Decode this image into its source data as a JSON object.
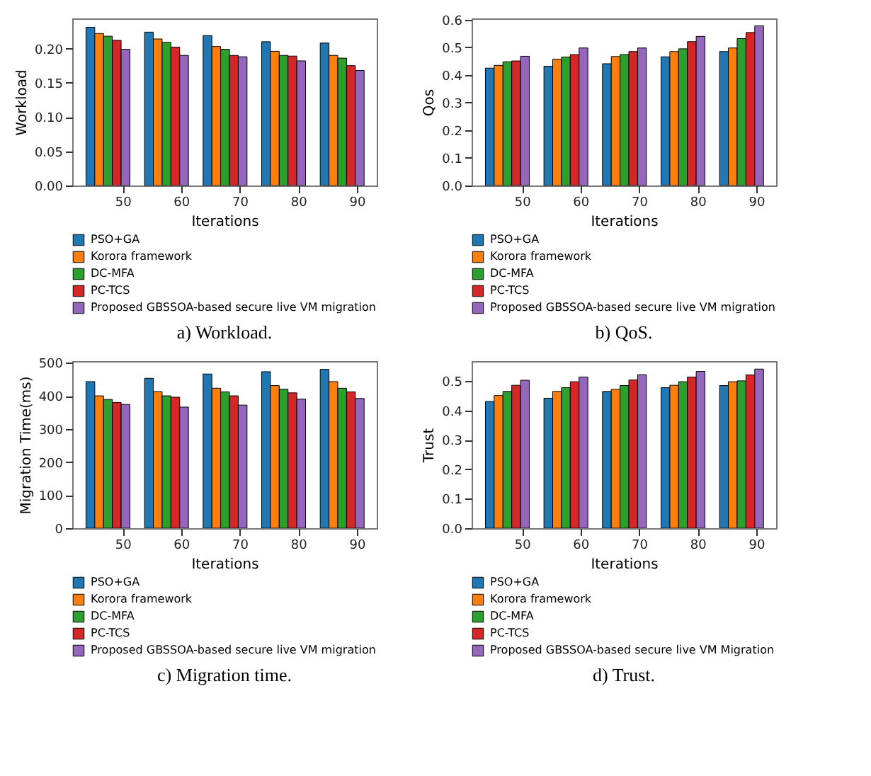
{
  "chart_data": [
    {
      "type": "bar",
      "annotations": [
        "a) Workload."
      ],
      "xlabel": "Iterations",
      "ylabel": "Workload",
      "xlim": [
        41.4,
        93.4
      ],
      "xticks": [
        50,
        60,
        70,
        80,
        90
      ],
      "ylim": [
        0,
        0.244
      ],
      "yticks": [
        {
          "value": 0,
          "label": "0.00"
        },
        {
          "value": 0.05,
          "label": "0.05"
        },
        {
          "value": 0.1,
          "label": "0.10"
        },
        {
          "value": 0.15,
          "label": "0.15"
        },
        {
          "value": 0.2,
          "label": "0.20"
        }
      ],
      "grid": false,
      "legend": "bottom",
      "series": [
        {
          "name": "PSO+GA",
          "color": "#1f77b4",
          "x": [
            44.5,
            54.5,
            64.5,
            74.5,
            84.5
          ],
          "values": [
            0.231,
            0.224,
            0.219,
            0.21,
            0.208
          ]
        },
        {
          "name": "Korora framework",
          "color": "#ff7f0e",
          "x": [
            46,
            56,
            66,
            76,
            86
          ],
          "values": [
            0.222,
            0.214,
            0.203,
            0.196,
            0.19
          ]
        },
        {
          "name": "DC-MFA",
          "color": "#2ca02c",
          "x": [
            47.5,
            57.5,
            67.5,
            77.5,
            87.5
          ],
          "values": [
            0.218,
            0.209,
            0.199,
            0.19,
            0.186
          ]
        },
        {
          "name": "PC-TCS",
          "color": "#d62728",
          "x": [
            49,
            59,
            69,
            79,
            89
          ],
          "values": [
            0.212,
            0.202,
            0.19,
            0.189,
            0.175
          ]
        },
        {
          "name": "Proposed GBSSOA-based secure live VM migration",
          "color": "#9467bd",
          "x": [
            50.5,
            60.5,
            70.5,
            80.5,
            90.5
          ],
          "values": [
            0.199,
            0.19,
            0.188,
            0.182,
            0.168
          ]
        }
      ]
    },
    {
      "type": "bar",
      "annotations": [
        "b) QoS."
      ],
      "xlabel": "Iterations",
      "ylabel": "Qos",
      "xlim": [
        41.4,
        93.4
      ],
      "xticks": [
        50,
        60,
        70,
        80,
        90
      ],
      "ylim": [
        0,
        0.605
      ],
      "yticks": [
        {
          "value": 0,
          "label": "0.0"
        },
        0.1,
        0.2,
        0.3,
        0.4,
        0.5,
        0.6
      ],
      "grid": false,
      "legend": "bottom",
      "series": [
        {
          "name": "PSO+GA",
          "color": "#1f77b4",
          "x": [
            44.5,
            54.5,
            64.5,
            74.5,
            84.5
          ],
          "values": [
            0.425,
            0.432,
            0.441,
            0.466,
            0.485
          ]
        },
        {
          "name": "Korora framework",
          "color": "#ff7f0e",
          "x": [
            46,
            56,
            66,
            76,
            86
          ],
          "values": [
            0.435,
            0.457,
            0.467,
            0.485,
            0.498
          ]
        },
        {
          "name": "DC-MFA",
          "color": "#2ca02c",
          "x": [
            47.5,
            57.5,
            67.5,
            77.5,
            87.5
          ],
          "values": [
            0.448,
            0.465,
            0.474,
            0.495,
            0.532
          ]
        },
        {
          "name": "PC-TCS",
          "color": "#d62728",
          "x": [
            49,
            59,
            69,
            79,
            89
          ],
          "values": [
            0.451,
            0.474,
            0.485,
            0.521,
            0.554
          ]
        },
        {
          "name": "Proposed GBSSOA-based secure live VM migration",
          "color": "#9467bd",
          "x": [
            50.5,
            60.5,
            70.5,
            80.5,
            90.5
          ],
          "values": [
            0.468,
            0.498,
            0.498,
            0.54,
            0.578
          ]
        }
      ]
    },
    {
      "type": "bar",
      "annotations": [
        "c) Migration time."
      ],
      "xlabel": "Iterations",
      "ylabel": "Migration Time(ms)",
      "xlim": [
        41.4,
        93.4
      ],
      "xticks": [
        50,
        60,
        70,
        80,
        90
      ],
      "ylim": [
        0,
        505
      ],
      "yticks": [
        0,
        100,
        200,
        300,
        400,
        500
      ],
      "grid": false,
      "legend": "bottom",
      "series": [
        {
          "name": "PSO+GA",
          "color": "#1f77b4",
          "x": [
            44.5,
            54.5,
            64.5,
            74.5,
            84.5
          ],
          "values": [
            443,
            453,
            466,
            473,
            480
          ]
        },
        {
          "name": "Korora framework",
          "color": "#ff7f0e",
          "x": [
            46,
            56,
            66,
            76,
            86
          ],
          "values": [
            400,
            413,
            423,
            431,
            443
          ]
        },
        {
          "name": "DC-MFA",
          "color": "#2ca02c",
          "x": [
            47.5,
            57.5,
            67.5,
            77.5,
            87.5
          ],
          "values": [
            389,
            400,
            412,
            420,
            423
          ]
        },
        {
          "name": "PC-TCS",
          "color": "#d62728",
          "x": [
            49,
            59,
            69,
            79,
            89
          ],
          "values": [
            380,
            396,
            400,
            409,
            412
          ]
        },
        {
          "name": "Proposed GBSSOA-based secure live VM migration",
          "color": "#9467bd",
          "x": [
            50.5,
            60.5,
            70.5,
            80.5,
            90.5
          ],
          "values": [
            374,
            366,
            372,
            390,
            392
          ]
        }
      ]
    },
    {
      "type": "bar",
      "annotations": [
        "d) Trust."
      ],
      "xlabel": "Iterations",
      "ylabel": "Trust",
      "xlim": [
        41.4,
        93.4
      ],
      "xticks": [
        50,
        60,
        70,
        80,
        90
      ],
      "ylim": [
        0,
        0.567
      ],
      "yticks": [
        {
          "value": 0,
          "label": "0.0"
        },
        0.1,
        0.2,
        0.3,
        0.4,
        0.5
      ],
      "grid": false,
      "legend": "bottom",
      "series": [
        {
          "name": "PSO+GA",
          "color": "#1f77b4",
          "x": [
            44.5,
            54.5,
            64.5,
            74.5,
            84.5
          ],
          "values": [
            0.43,
            0.441,
            0.464,
            0.477,
            0.484
          ]
        },
        {
          "name": "Korora framework",
          "color": "#ff7f0e",
          "x": [
            46,
            56,
            66,
            76,
            86
          ],
          "values": [
            0.45,
            0.464,
            0.471,
            0.485,
            0.497
          ]
        },
        {
          "name": "DC-MFA",
          "color": "#2ca02c",
          "x": [
            47.5,
            57.5,
            67.5,
            77.5,
            87.5
          ],
          "values": [
            0.464,
            0.477,
            0.484,
            0.497,
            0.5
          ]
        },
        {
          "name": "PC-TCS",
          "color": "#d62728",
          "x": [
            49,
            59,
            69,
            79,
            89
          ],
          "values": [
            0.485,
            0.497,
            0.503,
            0.513,
            0.52
          ]
        },
        {
          "name": "Proposed GBSSOA-based secure live VM Migration",
          "color": "#9467bd",
          "x": [
            50.5,
            60.5,
            70.5,
            80.5,
            90.5
          ],
          "values": [
            0.502,
            0.513,
            0.521,
            0.532,
            0.54
          ]
        }
      ]
    }
  ]
}
